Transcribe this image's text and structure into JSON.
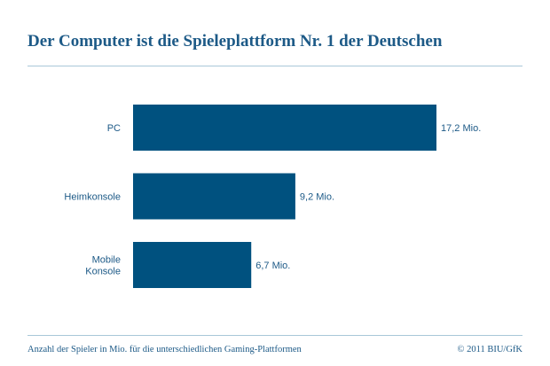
{
  "title": "Der Computer ist die Spieleplattform Nr. 1 der Deutschen",
  "footer": {
    "caption": "Anzahl der Spieler in Mio. für die unterschiedlichen Gaming-Plattformen",
    "source": "© 2011 BIU/GfK"
  },
  "colors": {
    "bar": "#00517f",
    "text": "#1d5a87",
    "rule": "#a9c7d8"
  },
  "chart_data": {
    "type": "bar",
    "orientation": "horizontal",
    "categories": [
      [
        "PC"
      ],
      [
        "Heimkonsole"
      ],
      [
        "Mobile",
        "Konsole"
      ]
    ],
    "values": [
      17.2,
      9.2,
      6.7
    ],
    "value_labels": [
      "17,2 Mio.",
      "9,2 Mio.",
      "6,7 Mio."
    ],
    "unit": "Mio.",
    "xlim": [
      0,
      17.2
    ],
    "grid": false,
    "legend": "none"
  }
}
